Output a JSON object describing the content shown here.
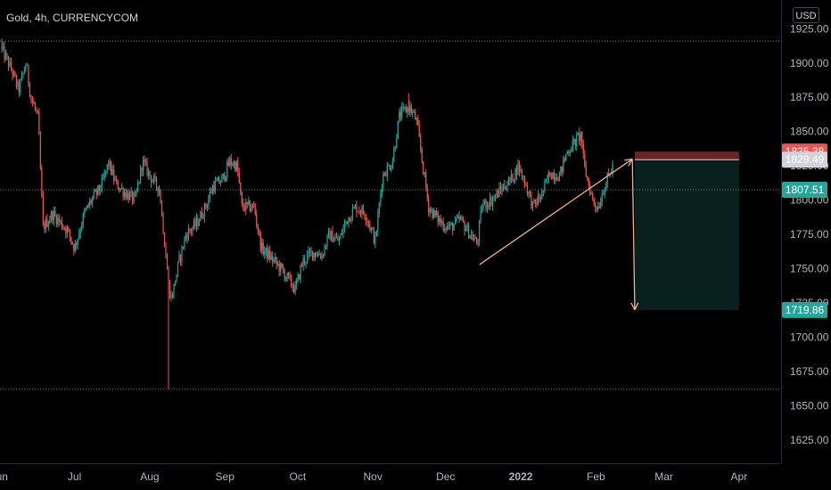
{
  "symbol_title": "Gold, 4h, CURRENCYCOM",
  "currency_badge": "USD",
  "colors": {
    "background": "#000000",
    "up_candle": "#26a69a",
    "down_candle": "#ef5350",
    "trend_arrow": "#f4b183",
    "stop_zone": "#ef5350",
    "target_zone": "#26a69a"
  },
  "chart_data": {
    "type": "candlestick",
    "timeframe": "4h",
    "y_ticks": [
      "1925.00",
      "1900.00",
      "1875.00",
      "1850.00",
      "1825.00",
      "1800.00",
      "1775.00",
      "1750.00",
      "1725.00",
      "1700.00",
      "1675.00",
      "1650.00",
      "1625.00"
    ],
    "x_ticks": [
      "Jun",
      "Jul",
      "Aug",
      "Sep",
      "Oct",
      "Nov",
      "Dec",
      "2022",
      "Feb",
      "Mar",
      "Apr"
    ],
    "ylim": [
      1608,
      1946
    ],
    "price_tags": [
      {
        "label": "1835.38",
        "value": 1835.38,
        "color": "#ef5350",
        "text_color": "#ffffff"
      },
      {
        "label": "1829.49",
        "value": 1829.49,
        "color": "#d1d4dc",
        "text_color": "#131722"
      },
      {
        "label": "1807.51",
        "value": 1807.51,
        "color": "#26a69a",
        "text_color": "#ffffff"
      },
      {
        "label": "1719.86",
        "value": 1719.86,
        "color": "#26a69a",
        "text_color": "#ffffff"
      }
    ],
    "horizontal_lines": [
      1916,
      1807.51,
      1662
    ],
    "price_path": [
      [
        "Jun 1",
        1910
      ],
      [
        "Jun 5",
        1895
      ],
      [
        "Jun 8",
        1880
      ],
      [
        "Jun 11",
        1900
      ],
      [
        "Jun 13",
        1875
      ],
      [
        "Jun 16",
        1860
      ],
      [
        "Jun 18",
        1780
      ],
      [
        "Jun 22",
        1790
      ],
      [
        "Jun 28",
        1778
      ],
      [
        "Jul 1",
        1765
      ],
      [
        "Jul 5",
        1790
      ],
      [
        "Jul 8",
        1800
      ],
      [
        "Jul 12",
        1810
      ],
      [
        "Jul 15",
        1827
      ],
      [
        "Jul 18",
        1812
      ],
      [
        "Jul 22",
        1805
      ],
      [
        "Jul 26",
        1800
      ],
      [
        "Jul 29",
        1828
      ],
      [
        "Aug 2",
        1815
      ],
      [
        "Aug 5",
        1808
      ],
      [
        "Aug 9",
        1735
      ],
      [
        "Aug 10",
        1728
      ],
      [
        "Aug 13",
        1755
      ],
      [
        "Aug 16",
        1775
      ],
      [
        "Aug 20",
        1782
      ],
      [
        "Aug 24",
        1795
      ],
      [
        "Aug 27",
        1810
      ],
      [
        "Aug 31",
        1815
      ],
      [
        "Sep 3",
        1828
      ],
      [
        "Sep 6",
        1825
      ],
      [
        "Sep 8",
        1795
      ],
      [
        "Sep 13",
        1795
      ],
      [
        "Sep 16",
        1765
      ],
      [
        "Sep 20",
        1758
      ],
      [
        "Sep 24",
        1750
      ],
      [
        "Sep 28",
        1740
      ],
      [
        "Sep 30",
        1735
      ],
      [
        "Oct 3",
        1755
      ],
      [
        "Oct 7",
        1762
      ],
      [
        "Oct 11",
        1760
      ],
      [
        "Oct 14",
        1775
      ],
      [
        "Oct 18",
        1770
      ],
      [
        "Oct 21",
        1785
      ],
      [
        "Oct 25",
        1795
      ],
      [
        "Oct 29",
        1790
      ],
      [
        "Nov 2",
        1770
      ],
      [
        "Nov 5",
        1818
      ],
      [
        "Nov 9",
        1828
      ],
      [
        "Nov 12",
        1862
      ],
      [
        "Nov 16",
        1868
      ],
      [
        "Nov 19",
        1858
      ],
      [
        "Nov 22",
        1820
      ],
      [
        "Nov 24",
        1795
      ],
      [
        "Nov 26",
        1790
      ],
      [
        "Nov 30",
        1782
      ],
      [
        "Dec 3",
        1780
      ],
      [
        "Dec 7",
        1786
      ],
      [
        "Dec 10",
        1778
      ],
      [
        "Dec 14",
        1768
      ],
      [
        "Dec 16",
        1796
      ],
      [
        "Dec 20",
        1800
      ],
      [
        "Dec 24",
        1808
      ],
      [
        "Dec 28",
        1815
      ],
      [
        "Dec 31",
        1825
      ],
      [
        "Jan 3",
        1812
      ],
      [
        "Jan 6",
        1795
      ],
      [
        "Jan 10",
        1805
      ],
      [
        "Jan 13",
        1820
      ],
      [
        "Jan 17",
        1818
      ],
      [
        "Jan 20",
        1835
      ],
      [
        "Jan 24",
        1844
      ],
      [
        "Jan 26",
        1848
      ],
      [
        "Jan 27",
        1825
      ],
      [
        "Jan 31",
        1798
      ],
      [
        "Feb 2",
        1795
      ],
      [
        "Feb 4",
        1808
      ],
      [
        "Feb 8",
        1825
      ]
    ],
    "intraday_extremes": [
      {
        "date": "Jun 1",
        "high": 1918
      },
      {
        "date": "Aug 9",
        "low": 1662
      },
      {
        "date": "Nov 16",
        "high": 1878
      },
      {
        "date": "Jan 25",
        "high": 1853
      }
    ],
    "annotations": [
      {
        "type": "trend_arrow",
        "from": [
          "Dec 15",
          1753
        ],
        "to": [
          "Feb 16",
          1830
        ]
      },
      {
        "type": "arrow",
        "from": [
          "Feb 16",
          1830
        ],
        "to": [
          "Feb 17",
          1719.86
        ]
      },
      {
        "type": "short_position",
        "start": "Feb 17",
        "end": "Apr 1",
        "stop": 1835.38,
        "entry": 1829.49,
        "target": 1719.86
      }
    ]
  }
}
